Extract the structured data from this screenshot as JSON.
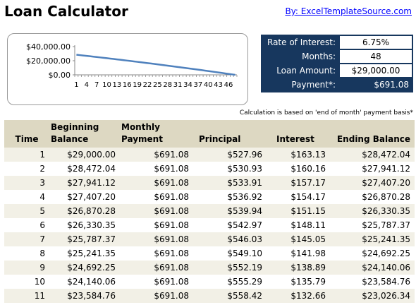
{
  "header": {
    "title": "Loan Calculator",
    "byline": "By: ExcelTemplateSource.com"
  },
  "params": [
    {
      "label": "Rate of Interest:",
      "value": "6.75%"
    },
    {
      "label": "Months:",
      "value": "48"
    },
    {
      "label": "Loan Amount:",
      "value": "$29,000.00"
    },
    {
      "label": "Payment*:",
      "value": "$691.08"
    }
  ],
  "note": "Calculation is based on 'end of month' payment basis*",
  "table": {
    "headers": {
      "time": "Time",
      "beginning_1": "Beginning",
      "beginning_2": "Balance",
      "monthly_1": "Monthly",
      "monthly_2": "Payment",
      "principal": "Principal",
      "interest": "Interest",
      "ending": "Ending Balance"
    },
    "rows": [
      {
        "time": "1",
        "begin": "$29,000.00",
        "payment": "$691.08",
        "principal": "$527.96",
        "interest": "$163.13",
        "end": "$28,472.04"
      },
      {
        "time": "2",
        "begin": "$28,472.04",
        "payment": "$691.08",
        "principal": "$530.93",
        "interest": "$160.16",
        "end": "$27,941.12"
      },
      {
        "time": "3",
        "begin": "$27,941.12",
        "payment": "$691.08",
        "principal": "$533.91",
        "interest": "$157.17",
        "end": "$27,407.20"
      },
      {
        "time": "4",
        "begin": "$27,407.20",
        "payment": "$691.08",
        "principal": "$536.92",
        "interest": "$154.17",
        "end": "$26,870.28"
      },
      {
        "time": "5",
        "begin": "$26,870.28",
        "payment": "$691.08",
        "principal": "$539.94",
        "interest": "$151.15",
        "end": "$26,330.35"
      },
      {
        "time": "6",
        "begin": "$26,330.35",
        "payment": "$691.08",
        "principal": "$542.97",
        "interest": "$148.11",
        "end": "$25,787.37"
      },
      {
        "time": "7",
        "begin": "$25,787.37",
        "payment": "$691.08",
        "principal": "$546.03",
        "interest": "$145.05",
        "end": "$25,241.35"
      },
      {
        "time": "8",
        "begin": "$25,241.35",
        "payment": "$691.08",
        "principal": "$549.10",
        "interest": "$141.98",
        "end": "$24,692.25"
      },
      {
        "time": "9",
        "begin": "$24,692.25",
        "payment": "$691.08",
        "principal": "$552.19",
        "interest": "$138.89",
        "end": "$24,140.06"
      },
      {
        "time": "10",
        "begin": "$24,140.06",
        "payment": "$691.08",
        "principal": "$555.29",
        "interest": "$135.79",
        "end": "$23,584.76"
      },
      {
        "time": "11",
        "begin": "$23,584.76",
        "payment": "$691.08",
        "principal": "$558.42",
        "interest": "$132.66",
        "end": "$23,026.34"
      }
    ]
  },
  "chart_data": {
    "type": "line",
    "series_color": "#4f81bd",
    "ylim": [
      0,
      40000
    ],
    "yticks": [
      "$40,000.00",
      "$20,000.00",
      "$0.00"
    ],
    "xticks": [
      "1",
      "4",
      "7",
      "10",
      "13",
      "16",
      "19",
      "22",
      "25",
      "28",
      "31",
      "34",
      "37",
      "40",
      "43",
      "46"
    ],
    "x_start": 1,
    "values": [
      28472.04,
      27941.12,
      27407.2,
      26870.28,
      26330.35,
      25787.37,
      25241.35,
      24692.25,
      24140.06,
      23584.76,
      23026.34,
      22464.78,
      21900.06,
      21332.16,
      20761.07,
      20186.77,
      19609.23,
      19028.45,
      18444.4,
      17857.06,
      17266.42,
      16672.46,
      16075.15,
      15474.48,
      14870.43,
      14262.99,
      13652.12,
      13037.81,
      12420.04,
      11798.79,
      11174.04,
      10545.77,
      9913.96,
      9278.59,
      8639.63,
      7997.07,
      7350.89,
      6701.07,
      6047.58,
      5390.4,
      4729.52,
      4064.91,
      3396.56,
      2724.44,
      2048.53,
      1368.81,
      685.26,
      0.0
    ]
  }
}
